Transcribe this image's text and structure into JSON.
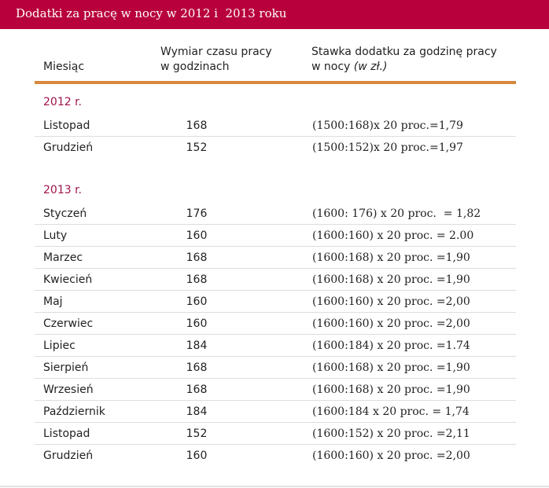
{
  "title": "Dodatki za pracę w nocy w 2012 i  2013 roku",
  "header": {
    "month": "Miesiąc",
    "hours_line1": "Wymiar czasu pracy",
    "hours_line2": "w godzinach",
    "rate_line1": "Stawka dodatku za godzinę pracy",
    "rate_line2": "w nocy",
    "rate_unit": "(w zł.)"
  },
  "years": [
    {
      "label": "2012 r.",
      "rows": [
        {
          "month": "Listopad",
          "hours": "168",
          "rate": "(1500:168)x 20 proc.=1,79"
        },
        {
          "month": "Grudzień",
          "hours": "152",
          "rate": "(1500:152)x 20 proc.=1,97"
        }
      ]
    },
    {
      "label": "2013 r.",
      "rows": [
        {
          "month": "Styczeń",
          "hours": "176",
          "rate": "(1600: 176) x 20 proc.  = 1,82"
        },
        {
          "month": "Luty",
          "hours": "160",
          "rate": "(1600:160) x 20 proc. = 2.00"
        },
        {
          "month": "Marzec",
          "hours": "168",
          "rate": "(1600:168) x 20 proc. =1,90"
        },
        {
          "month": "Kwiecień",
          "hours": "168",
          "rate": "(1600:168) x 20 proc. =1,90"
        },
        {
          "month": "Maj",
          "hours": "160",
          "rate": "(1600:160) x 20 proc. =2,00"
        },
        {
          "month": "Czerwiec",
          "hours": "160",
          "rate": "(1600:160) x 20 proc. =2,00"
        },
        {
          "month": "Lipiec",
          "hours": "184",
          "rate": "(1600:184) x 20 proc. =1.74"
        },
        {
          "month": "Sierpień",
          "hours": "168",
          "rate": "(1600:168) x 20 proc. =1,90"
        },
        {
          "month": "Wrzesień",
          "hours": "168",
          "rate": "(1600:168) x 20 proc. =1,90"
        },
        {
          "month": "Październik",
          "hours": "184",
          "rate": "(1600:184 x 20 proc. = 1,74"
        },
        {
          "month": "Listopad",
          "hours": "152",
          "rate": "(1600:152) x 20 proc. =2,11"
        },
        {
          "month": "Grudzień",
          "hours": "160",
          "rate": "(1600:160) x 20 proc. =2,00"
        }
      ]
    }
  ],
  "colors": {
    "title_bar": "#b8003c",
    "header_rule": "#d7883c",
    "year_label": "#a0124c"
  }
}
